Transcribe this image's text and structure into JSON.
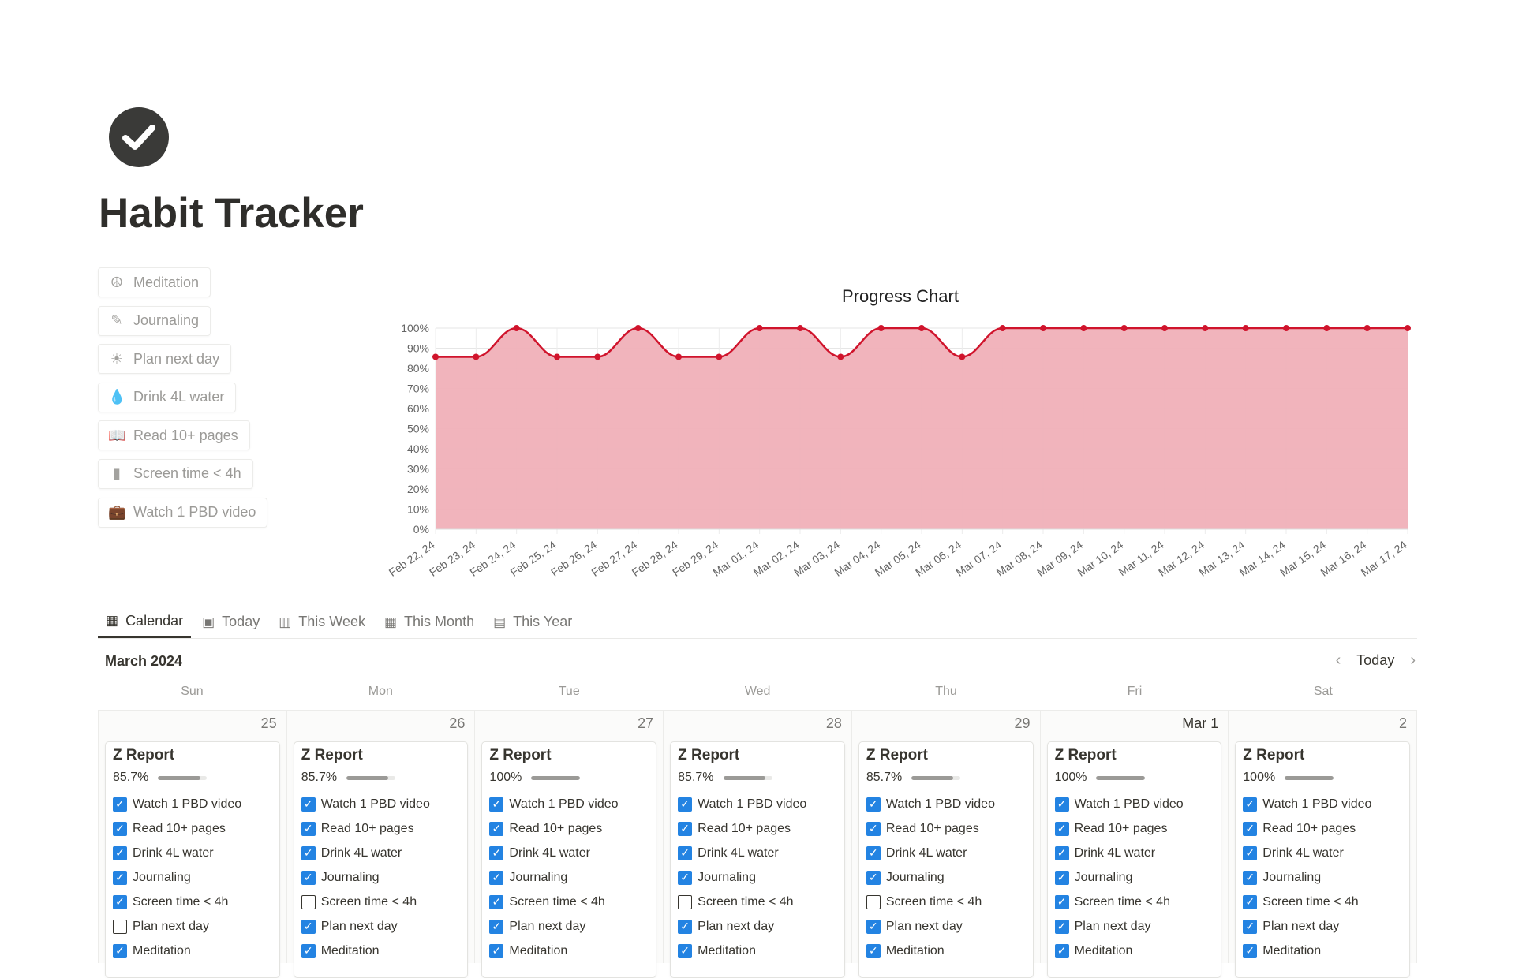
{
  "page": {
    "title": "Habit Tracker",
    "icon": "check-circle-icon"
  },
  "habits": [
    {
      "label": "Meditation",
      "icon": "peace-icon",
      "glyph": "☮"
    },
    {
      "label": "Journaling",
      "icon": "pen-icon",
      "glyph": "✎"
    },
    {
      "label": "Plan next day",
      "icon": "sun-icon",
      "glyph": "☀"
    },
    {
      "label": "Drink 4L water",
      "icon": "drop-icon",
      "glyph": "💧"
    },
    {
      "label": "Read 10+ pages",
      "icon": "book-icon",
      "glyph": "📖"
    },
    {
      "label": "Screen time < 4h",
      "icon": "phone-icon",
      "glyph": "▮"
    },
    {
      "label": "Watch 1 PBD video",
      "icon": "briefcase-icon",
      "glyph": "💼"
    }
  ],
  "chart_data": {
    "type": "area",
    "title": "Progress Chart",
    "ylim": [
      0,
      100
    ],
    "grid": true,
    "yticks": [
      "0%",
      "10%",
      "20%",
      "30%",
      "40%",
      "50%",
      "60%",
      "70%",
      "80%",
      "90%",
      "100%"
    ],
    "categories": [
      "Feb 22, 24",
      "Feb 23, 24",
      "Feb 24, 24",
      "Feb 25, 24",
      "Feb 26, 24",
      "Feb 27, 24",
      "Feb 28, 24",
      "Feb 29, 24",
      "Mar 01, 24",
      "Mar 02, 24",
      "Mar 03, 24",
      "Mar 04, 24",
      "Mar 05, 24",
      "Mar 06, 24",
      "Mar 07, 24",
      "Mar 08, 24",
      "Mar 09, 24",
      "Mar 10, 24",
      "Mar 11, 24",
      "Mar 12, 24",
      "Mar 13, 24",
      "Mar 14, 24",
      "Mar 15, 24",
      "Mar 16, 24",
      "Mar 17, 24"
    ],
    "values": [
      85.7,
      85.7,
      100,
      85.7,
      85.7,
      100,
      85.7,
      85.7,
      100,
      100,
      85.7,
      100,
      100,
      85.7,
      100,
      100,
      100,
      100,
      100,
      100,
      100,
      100,
      100,
      100,
      100
    ],
    "line_color": "#d0142c",
    "fill_color": "#f0b0b8"
  },
  "tabs": [
    {
      "label": "Calendar",
      "glyph": "▦",
      "active": true
    },
    {
      "label": "Today",
      "glyph": "▣"
    },
    {
      "label": "This Week",
      "glyph": "▥"
    },
    {
      "label": "This Month",
      "glyph": "▦"
    },
    {
      "label": "This Year",
      "glyph": "▤"
    }
  ],
  "calendar": {
    "month": "March 2024",
    "today_label": "Today",
    "weekdays": [
      "Sun",
      "Mon",
      "Tue",
      "Wed",
      "Thu",
      "Fri",
      "Sat"
    ],
    "days": [
      {
        "date": "25",
        "title": "Z Report",
        "pct": "85.7%",
        "value": 85.7,
        "checks": [
          true,
          true,
          true,
          true,
          true,
          false,
          true
        ]
      },
      {
        "date": "26",
        "title": "Z Report",
        "pct": "85.7%",
        "value": 85.7,
        "checks": [
          true,
          true,
          true,
          true,
          false,
          true,
          true
        ]
      },
      {
        "date": "27",
        "title": "Z Report",
        "pct": "100%",
        "value": 100,
        "checks": [
          true,
          true,
          true,
          true,
          true,
          true,
          true
        ]
      },
      {
        "date": "28",
        "title": "Z Report",
        "pct": "85.7%",
        "value": 85.7,
        "checks": [
          true,
          true,
          true,
          true,
          false,
          true,
          true
        ]
      },
      {
        "date": "29",
        "title": "Z Report",
        "pct": "85.7%",
        "value": 85.7,
        "checks": [
          true,
          true,
          true,
          true,
          false,
          true,
          true
        ]
      },
      {
        "date": "Mar 1",
        "title": "Z Report",
        "pct": "100%",
        "value": 100,
        "checks": [
          true,
          true,
          true,
          true,
          true,
          true,
          true
        ]
      },
      {
        "date": "2",
        "title": "Z Report",
        "pct": "100%",
        "value": 100,
        "checks": [
          true,
          true,
          true,
          true,
          true,
          true,
          true
        ]
      }
    ],
    "items": [
      "Watch 1 PBD video",
      "Read 10+ pages",
      "Drink 4L water",
      "Journaling",
      "Screen time < 4h",
      "Plan next day",
      "Meditation"
    ]
  }
}
